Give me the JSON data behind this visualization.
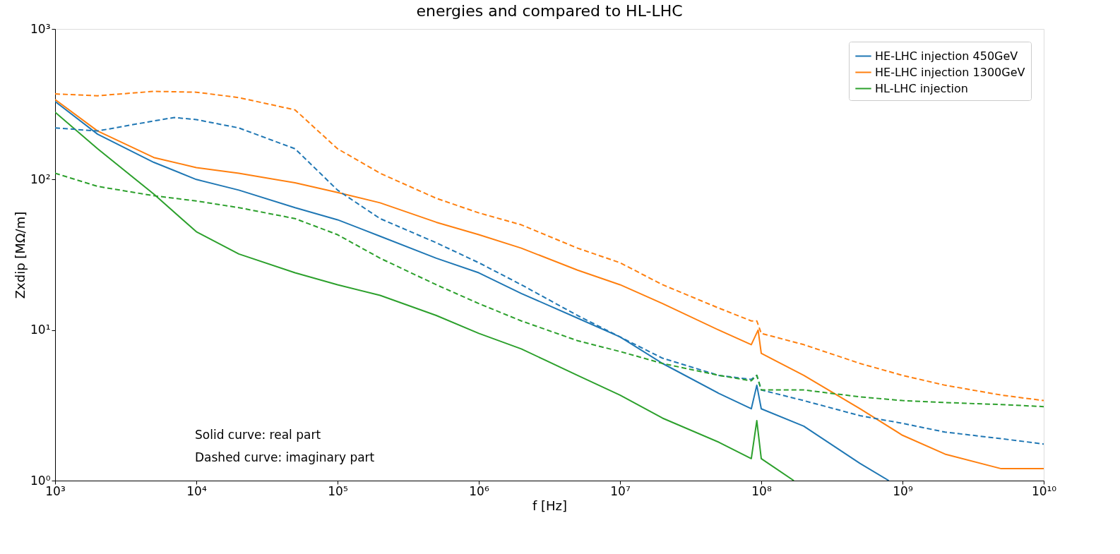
{
  "chart_data": {
    "type": "line",
    "title": "energies and compared to HL-LHC",
    "xlabel": "f [Hz]",
    "ylabel": "Zxdip [MΩ/m]",
    "log": "xy",
    "grid": false,
    "legend": "top right",
    "marker": "none",
    "xlim": [
      1000,
      10000000000
    ],
    "ylim": [
      1,
      1000
    ],
    "xticks": [
      {
        "value": 1000,
        "label": "10³"
      },
      {
        "value": 10000,
        "label": "10⁴"
      },
      {
        "value": 100000,
        "label": "10⁵"
      },
      {
        "value": 1000000,
        "label": "10⁶"
      },
      {
        "value": 10000000,
        "label": "10⁷"
      },
      {
        "value": 100000000,
        "label": "10⁸"
      },
      {
        "value": 1000000000,
        "label": "10⁹"
      },
      {
        "value": 10000000000,
        "label": "10¹⁰"
      }
    ],
    "yticks": [
      {
        "value": 1,
        "label": "10⁰"
      },
      {
        "value": 10,
        "label": "10¹"
      },
      {
        "value": 100,
        "label": "10²"
      },
      {
        "value": 1000,
        "label": "10³"
      }
    ],
    "annotations": [
      "Solid curve: real part",
      "Dashed curve: imaginary part"
    ],
    "series": [
      {
        "name": "HE-LHC injection 450GeV",
        "color": "#1f77b4",
        "line_style": "solid",
        "x": [
          1000,
          2000,
          5000,
          10000,
          20000,
          50000,
          100000,
          200000,
          500000,
          1000000,
          2000000,
          5000000,
          10000000,
          20000000,
          50000000,
          85000000,
          93000000,
          100000000,
          200000000,
          500000000,
          800000000
        ],
        "values": [
          330,
          200,
          130,
          100,
          85,
          65,
          54,
          42,
          30,
          24,
          17.5,
          12,
          9,
          6,
          3.8,
          3.0,
          4.3,
          3.0,
          2.3,
          1.3,
          1.0
        ]
      },
      {
        "name": "HE-LHC injection 1300GeV",
        "color": "#ff7f0e",
        "line_style": "solid",
        "x": [
          1000,
          2000,
          5000,
          10000,
          20000,
          50000,
          100000,
          200000,
          500000,
          1000000,
          2000000,
          5000000,
          10000000,
          20000000,
          50000000,
          85000000,
          95000000,
          100000000,
          200000000,
          500000000,
          1000000000,
          2000000000,
          5000000000,
          10000000000
        ],
        "values": [
          340,
          210,
          140,
          120,
          110,
          95,
          82,
          70,
          52,
          43,
          35,
          25,
          20,
          15,
          10,
          8,
          10,
          7,
          5,
          3,
          2.0,
          1.5,
          1.2,
          1.2
        ]
      },
      {
        "name": "HL-LHC injection",
        "color": "#2ca02c",
        "line_style": "solid",
        "x": [
          1000,
          2000,
          5000,
          10000,
          20000,
          50000,
          100000,
          200000,
          500000,
          1000000,
          2000000,
          5000000,
          10000000,
          20000000,
          50000000,
          85000000,
          93000000,
          100000000,
          170000000
        ],
        "values": [
          280,
          160,
          80,
          45,
          32,
          24,
          20,
          17,
          12.5,
          9.5,
          7.5,
          5,
          3.7,
          2.6,
          1.8,
          1.4,
          2.5,
          1.4,
          1.0
        ]
      },
      {
        "color": "#1f77b4",
        "line_style": "dashed",
        "x": [
          1000,
          2000,
          5000,
          7000,
          10000,
          20000,
          50000,
          100000,
          200000,
          500000,
          1000000,
          2000000,
          5000000,
          10000000,
          20000000,
          50000000,
          85000000,
          93000000,
          100000000,
          200000000,
          500000000,
          1000000000,
          2000000000,
          5000000000,
          10000000000
        ],
        "values": [
          220,
          210,
          245,
          258,
          250,
          220,
          160,
          85,
          55,
          38,
          28,
          20,
          12.5,
          9,
          6.5,
          5,
          4.7,
          5,
          4.0,
          3.4,
          2.7,
          2.4,
          2.1,
          1.9,
          1.75
        ]
      },
      {
        "color": "#ff7f0e",
        "line_style": "dashed",
        "x": [
          1000,
          2000,
          5000,
          10000,
          20000,
          50000,
          100000,
          200000,
          500000,
          1000000,
          2000000,
          5000000,
          10000000,
          20000000,
          50000000,
          85000000,
          93000000,
          100000000,
          200000000,
          500000000,
          1000000000,
          2000000000,
          5000000000,
          10000000000
        ],
        "values": [
          370,
          360,
          385,
          380,
          350,
          290,
          160,
          110,
          75,
          60,
          50,
          35,
          28,
          20,
          14,
          11.5,
          11.5,
          9.5,
          8,
          6,
          5,
          4.3,
          3.7,
          3.4
        ]
      },
      {
        "color": "#2ca02c",
        "line_style": "dashed",
        "x": [
          1000,
          2000,
          5000,
          10000,
          20000,
          50000,
          100000,
          200000,
          500000,
          1000000,
          2000000,
          5000000,
          10000000,
          20000000,
          50000000,
          85000000,
          93000000,
          100000000,
          200000000,
          500000000,
          1000000000,
          2000000000,
          5000000000,
          10000000000
        ],
        "values": [
          110,
          90,
          78,
          72,
          65,
          55,
          43,
          30,
          20,
          15,
          11.5,
          8.5,
          7.2,
          6,
          5,
          4.6,
          5,
          4.0,
          4.0,
          3.6,
          3.4,
          3.3,
          3.2,
          3.1
        ]
      }
    ]
  }
}
